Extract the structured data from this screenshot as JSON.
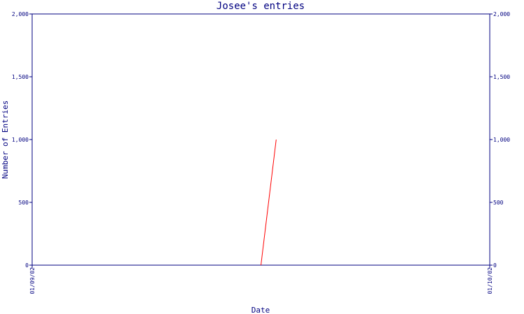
{
  "chart_data": {
    "type": "line",
    "title": "Josee's entries",
    "xlabel": "Date",
    "ylabel": "Number of Entries",
    "ylim": [
      0,
      2000
    ],
    "yticks": [
      0,
      500,
      1000,
      1500,
      2000
    ],
    "ytick_labels": [
      "0",
      "500",
      "1,000",
      "1,500",
      "2,000"
    ],
    "x_start": "2002-09-01",
    "x_end": "2002-10-01",
    "xtick_labels": [
      "01/09/02",
      "01/10/02"
    ],
    "series": [
      {
        "color": "#ff0000",
        "points": [
          {
            "x": "2002-09-16",
            "y": 0
          },
          {
            "x": "2002-09-17",
            "y": 1000
          }
        ]
      }
    ],
    "axis_color": "#000080",
    "grid": false,
    "right_axis_mirrored": true
  }
}
